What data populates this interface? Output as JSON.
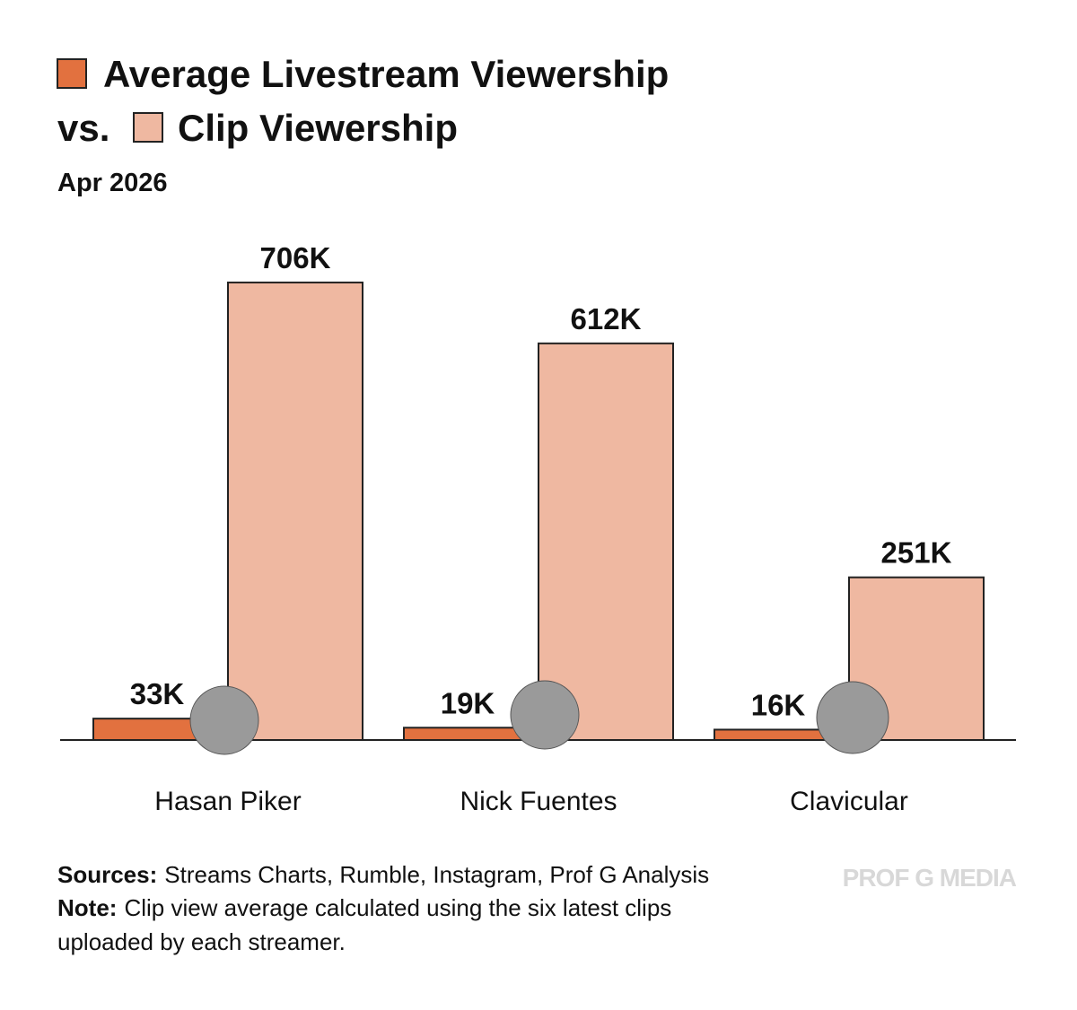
{
  "chart_data": {
    "type": "bar",
    "legend_joiner": "vs.",
    "subtitle": "Apr 2026",
    "categories": [
      "Hasan Piker",
      "Nick Fuentes",
      "Clavicular"
    ],
    "series": [
      {
        "name": "Average Livestream Viewership",
        "color": "#e2713f",
        "values": [
          33,
          19,
          16
        ],
        "value_labels": [
          "33K",
          "19K",
          "16K"
        ]
      },
      {
        "name": "Clip Viewership",
        "color": "#efb8a1",
        "values": [
          706,
          612,
          251
        ],
        "value_labels": [
          "706K",
          "612K",
          "251K"
        ]
      }
    ],
    "sources_label": "Sources:",
    "sources": "Streams Charts, Rumble, Instagram, Prof G Analysis",
    "note_label": "Note:",
    "note": "Clip view average calculated using the six latest clips",
    "note_line2": "uploaded by each streamer.",
    "watermark": "PROF G MEDIA"
  }
}
